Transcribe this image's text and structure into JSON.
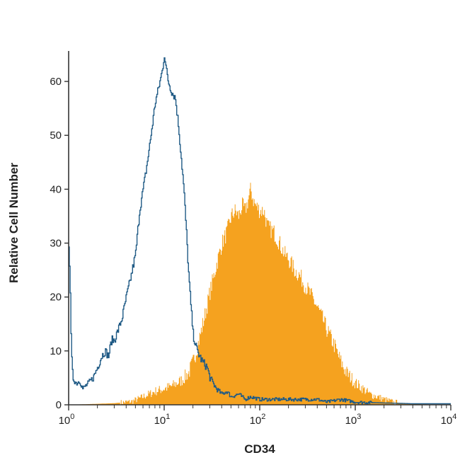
{
  "chart_data": {
    "type": "area",
    "title": "",
    "xlabel": "CD34",
    "ylabel": "Relative Cell Number",
    "xscale": "log",
    "xlim": [
      1,
      10000
    ],
    "ylim": [
      0,
      65
    ],
    "yticks": [
      0,
      10,
      20,
      30,
      40,
      50,
      60
    ],
    "xticks": [
      {
        "base": "10",
        "exp": "0",
        "value": 1
      },
      {
        "base": "10",
        "exp": "1",
        "value": 10
      },
      {
        "base": "10",
        "exp": "2",
        "value": 100
      },
      {
        "base": "10",
        "exp": "3",
        "value": 1000
      },
      {
        "base": "10",
        "exp": "4",
        "value": 10000
      }
    ],
    "grid": false,
    "legend": "none",
    "colors": {
      "filled": "#f5a21f",
      "outline": "#1f5a85",
      "axis": "#333333"
    },
    "series": [
      {
        "style": "filled histogram",
        "points": [
          [
            1,
            0
          ],
          [
            3,
            0.3
          ],
          [
            4.5,
            0.6
          ],
          [
            5.5,
            1.2
          ],
          [
            6.5,
            1.8
          ],
          [
            8,
            2.5
          ],
          [
            10,
            3
          ],
          [
            12,
            3.5
          ],
          [
            15,
            4.5
          ],
          [
            18,
            6
          ],
          [
            20,
            8
          ],
          [
            23,
            12
          ],
          [
            26,
            16
          ],
          [
            30,
            21
          ],
          [
            35,
            26
          ],
          [
            40,
            30
          ],
          [
            45,
            32
          ],
          [
            50,
            35
          ],
          [
            55,
            36
          ],
          [
            60,
            35
          ],
          [
            65,
            37
          ],
          [
            70,
            36
          ],
          [
            75,
            38
          ],
          [
            80,
            40
          ],
          [
            85,
            38
          ],
          [
            90,
            37
          ],
          [
            100,
            36
          ],
          [
            110,
            36
          ],
          [
            120,
            33
          ],
          [
            140,
            32
          ],
          [
            160,
            30
          ],
          [
            180,
            28
          ],
          [
            200,
            27
          ],
          [
            230,
            25
          ],
          [
            260,
            24
          ],
          [
            300,
            22
          ],
          [
            350,
            20
          ],
          [
            400,
            18
          ],
          [
            450,
            16
          ],
          [
            500,
            14
          ],
          [
            600,
            11
          ],
          [
            700,
            8
          ],
          [
            800,
            6
          ],
          [
            900,
            5
          ],
          [
            1000,
            4
          ],
          [
            1200,
            3
          ],
          [
            1400,
            2
          ],
          [
            1700,
            1.5
          ],
          [
            2000,
            1
          ],
          [
            2500,
            0.5
          ],
          [
            3000,
            0.3
          ],
          [
            4000,
            0.2
          ],
          [
            5000,
            0.1
          ],
          [
            10000,
            0
          ]
        ]
      },
      {
        "style": "outline histogram",
        "points": [
          [
            1,
            30
          ],
          [
            1.03,
            24
          ],
          [
            1.06,
            10
          ],
          [
            1.1,
            5
          ],
          [
            1.2,
            4
          ],
          [
            1.3,
            4.5
          ],
          [
            1.4,
            3
          ],
          [
            1.6,
            4
          ],
          [
            1.8,
            5
          ],
          [
            2,
            7
          ],
          [
            2.2,
            9
          ],
          [
            2.4,
            10
          ],
          [
            2.6,
            9
          ],
          [
            2.8,
            12
          ],
          [
            3,
            12
          ],
          [
            3.3,
            14
          ],
          [
            3.6,
            16
          ],
          [
            4,
            20
          ],
          [
            4.5,
            24
          ],
          [
            5,
            28
          ],
          [
            5.5,
            36
          ],
          [
            6,
            40
          ],
          [
            6.5,
            44
          ],
          [
            7,
            48
          ],
          [
            7.5,
            52
          ],
          [
            8,
            56
          ],
          [
            8.5,
            58
          ],
          [
            9,
            60
          ],
          [
            9.5,
            62
          ],
          [
            10,
            65
          ],
          [
            10.5,
            62
          ],
          [
            11,
            60
          ],
          [
            12,
            58
          ],
          [
            13,
            57
          ],
          [
            14,
            52
          ],
          [
            15,
            46
          ],
          [
            16,
            40
          ],
          [
            17,
            32
          ],
          [
            18,
            24
          ],
          [
            19,
            18
          ],
          [
            20,
            13
          ],
          [
            22,
            10
          ],
          [
            25,
            8
          ],
          [
            28,
            7
          ],
          [
            30,
            5
          ],
          [
            35,
            3
          ],
          [
            40,
            2
          ],
          [
            45,
            2.5
          ],
          [
            50,
            1.5
          ],
          [
            60,
            2
          ],
          [
            70,
            1
          ],
          [
            80,
            1.5
          ],
          [
            100,
            1
          ],
          [
            150,
            1
          ],
          [
            200,
            1
          ],
          [
            300,
            1
          ],
          [
            400,
            1
          ],
          [
            500,
            0.5
          ],
          [
            700,
            1
          ],
          [
            1000,
            0.5
          ],
          [
            1500,
            0.4
          ],
          [
            2500,
            0.3
          ],
          [
            4000,
            0.2
          ],
          [
            10000,
            0.2
          ]
        ]
      }
    ]
  }
}
